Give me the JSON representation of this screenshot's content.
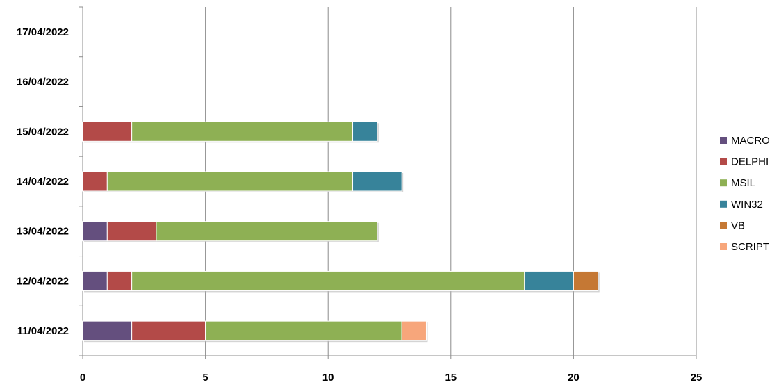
{
  "chart_data": {
    "type": "bar",
    "orientation": "horizontal",
    "stacked": true,
    "categories": [
      "11/04/2022",
      "12/04/2022",
      "13/04/2022",
      "14/04/2022",
      "15/04/2022",
      "16/04/2022",
      "17/04/2022"
    ],
    "series": [
      {
        "name": "MACRO",
        "color": "#644f7e",
        "values": [
          2,
          1,
          1,
          0,
          0,
          0,
          0
        ]
      },
      {
        "name": "DELPHI",
        "color": "#b34a48",
        "values": [
          3,
          1,
          2,
          1,
          2,
          0,
          0
        ]
      },
      {
        "name": "MSIL",
        "color": "#8eb054",
        "values": [
          8,
          16,
          9,
          10,
          9,
          0,
          0
        ]
      },
      {
        "name": "WIN32",
        "color": "#37839a",
        "values": [
          0,
          2,
          0,
          2,
          1,
          0,
          0
        ]
      },
      {
        "name": "VB",
        "color": "#c57834",
        "values": [
          0,
          1,
          0,
          0,
          0,
          0,
          0
        ]
      },
      {
        "name": "SCRIPT",
        "color": "#f7a67b",
        "values": [
          1,
          0,
          0,
          0,
          0,
          0,
          0
        ]
      }
    ],
    "xticks": [
      "0",
      "5",
      "10",
      "15",
      "20",
      "25"
    ],
    "xlim": [
      0,
      25
    ],
    "grid": true,
    "legend_position": "right",
    "title": "",
    "xlabel": "",
    "ylabel": ""
  }
}
